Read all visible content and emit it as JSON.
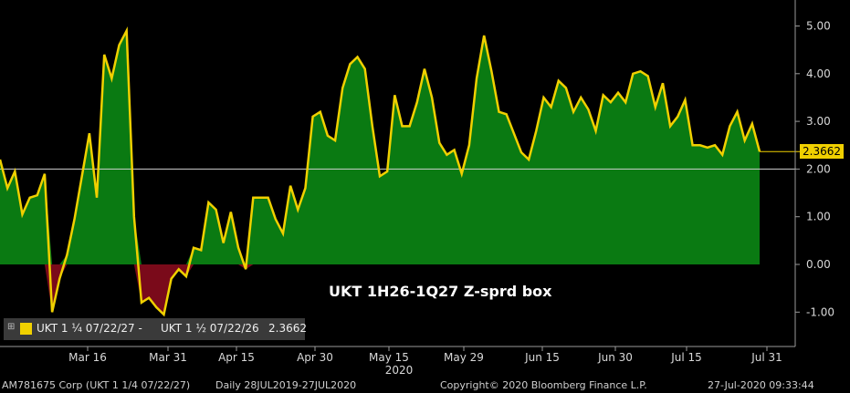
{
  "chart_data": {
    "type": "area",
    "title": "UKT 1H26-1Q27 Z-sprd box",
    "x_label": "2020",
    "x_ticks": [
      "Mar 16",
      "Mar 31",
      "Apr 15",
      "Apr 30",
      "May 15",
      "May 29",
      "Jun 15",
      "Jun 30",
      "Jul 15",
      "Jul 31"
    ],
    "y_ticks": [
      "5.00",
      "4.00",
      "3.00",
      "2.00",
      "1.00",
      "0.00",
      "-1.00"
    ],
    "ylim": [
      -1.6,
      5.5
    ],
    "reference_line": 2.0,
    "last_value": "2.3662",
    "colors": {
      "positive_fill": "#0a7a12",
      "negative_fill": "#7a0a1a",
      "line": "#f0d000",
      "ref_line": "#d0d0d0"
    },
    "series": [
      {
        "name": "UKT 1 ¼ 07/22/27 - UKT 1 ½ 07/22/26",
        "values": [
          2.2,
          1.6,
          1.95,
          1.05,
          1.4,
          1.45,
          1.9,
          -1.0,
          -0.3,
          0.2,
          0.95,
          1.85,
          2.75,
          1.4,
          4.4,
          3.9,
          4.6,
          4.9,
          1.0,
          -0.8,
          -0.7,
          -0.9,
          -1.05,
          -0.3,
          -0.1,
          -0.25,
          0.35,
          0.3,
          1.3,
          1.15,
          0.45,
          1.1,
          0.35,
          -0.1,
          1.4,
          1.4,
          1.4,
          0.95,
          0.65,
          1.65,
          1.15,
          1.6,
          3.1,
          3.2,
          2.7,
          2.6,
          3.7,
          4.2,
          4.35,
          4.1,
          2.9,
          1.85,
          1.95,
          3.55,
          2.9,
          2.9,
          3.4,
          4.1,
          3.5,
          2.55,
          2.3,
          2.4,
          1.9,
          2.5,
          3.9,
          4.8,
          4.05,
          3.2,
          3.15,
          2.75,
          2.35,
          2.2,
          2.8,
          3.5,
          3.3,
          3.85,
          3.7,
          3.2,
          3.5,
          3.25,
          2.8,
          3.55,
          3.4,
          3.6,
          3.4,
          4.0,
          4.05,
          3.95,
          3.3,
          3.8,
          2.9,
          3.1,
          3.45,
          2.5,
          2.5,
          2.45,
          2.5,
          2.3,
          2.9,
          3.2,
          2.6,
          2.95,
          2.3662
        ]
      }
    ],
    "legend": {
      "label_a": "UKT 1 ¼ 07/22/27 -",
      "label_b": "UKT 1 ½ 07/22/26",
      "value": "2.3662"
    }
  },
  "footer": {
    "ticker": "AM781675 Corp (UKT 1 1/4 07/22/27)",
    "range": "Daily 28JUL2019-27JUL2020",
    "copyright": "Copyright© 2020 Bloomberg Finance L.P.",
    "timestamp": "27-Jul-2020 09:33:44"
  }
}
